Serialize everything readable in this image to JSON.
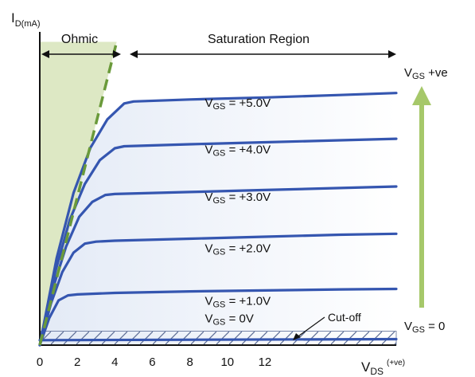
{
  "chart_data": {
    "type": "line",
    "title": "",
    "ylabel": {
      "main": "I",
      "sub": "D(mA)"
    },
    "xlabel": {
      "main": "V",
      "sub": "DS",
      "suffix": "(+ve)"
    },
    "xlim": [
      0,
      19
    ],
    "ylim": [
      0,
      6.3
    ],
    "x_ticks": [
      0,
      2,
      4,
      6,
      8,
      10,
      12
    ],
    "regions": {
      "ohmic": "Ohmic",
      "saturation": "Saturation Region",
      "cutoff": "Cut-off"
    },
    "vgs_arrow": {
      "top_label": "V",
      "top_sub": "GS",
      "top_suffix": " +ve",
      "bottom_label": "V",
      "bottom_sub": "GS",
      "bottom_suffix": " = 0"
    },
    "curve_color": "#3556b0",
    "boundary_color": "#6a9a3a",
    "ohmic_fill": "#dde8c4",
    "arrow_color": "#a6c86a",
    "series": [
      {
        "label_pre": "V",
        "label_sub": "GS",
        "label_post": " = 0V",
        "x": [
          0,
          19
        ],
        "y": [
          0.1,
          0.12
        ]
      },
      {
        "label_pre": "V",
        "label_sub": "GS",
        "label_post": " = +1.0V",
        "x": [
          0,
          0.5,
          1,
          1.5,
          2,
          4,
          8,
          12,
          16,
          19
        ],
        "y": [
          0,
          0.54,
          0.9,
          1.0,
          1.02,
          1.05,
          1.08,
          1.1,
          1.12,
          1.13
        ]
      },
      {
        "label_pre": "V",
        "label_sub": "GS",
        "label_post": " = +2.0V",
        "x": [
          0,
          0.6,
          1.2,
          1.8,
          2.4,
          3,
          4,
          8,
          12,
          16,
          19
        ],
        "y": [
          0,
          0.84,
          1.47,
          1.86,
          2.04,
          2.08,
          2.1,
          2.14,
          2.18,
          2.22,
          2.24
        ]
      },
      {
        "label_pre": "V",
        "label_sub": "GS",
        "label_post": " = +3.0V",
        "x": [
          0,
          0.7,
          1.4,
          2.1,
          2.8,
          3.5,
          4,
          8,
          12,
          16,
          19
        ],
        "y": [
          0,
          1.14,
          1.98,
          2.58,
          2.88,
          3.02,
          3.04,
          3.08,
          3.12,
          3.16,
          3.19
        ]
      },
      {
        "label_pre": "V",
        "label_sub": "GS",
        "label_post": " = +4.0V",
        "x": [
          0,
          0.8,
          1.6,
          2.4,
          3.2,
          4,
          4.5,
          8,
          12,
          16,
          19
        ],
        "y": [
          0,
          1.44,
          2.52,
          3.24,
          3.72,
          3.96,
          4.0,
          4.04,
          4.08,
          4.12,
          4.15
        ]
      },
      {
        "label_pre": "V",
        "label_sub": "GS",
        "label_post": " = +5.0V",
        "x": [
          0,
          0.9,
          1.8,
          2.7,
          3.6,
          4.5,
          5,
          8,
          12,
          16,
          19
        ],
        "y": [
          0,
          1.75,
          3.06,
          3.97,
          4.54,
          4.86,
          4.9,
          4.94,
          4.98,
          5.03,
          5.07
        ]
      }
    ],
    "boundary": {
      "x": [
        0,
        4.1
      ],
      "y": [
        0,
        6.1
      ]
    }
  }
}
